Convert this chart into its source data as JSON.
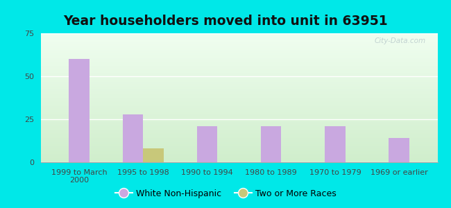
{
  "title": "Year householders moved into unit in 63951",
  "categories": [
    "1999 to March\n2000",
    "1995 to 1998",
    "1990 to 1994",
    "1980 to 1989",
    "1970 to 1979",
    "1969 or earlier"
  ],
  "white_non_hispanic": [
    60,
    28,
    21,
    21,
    21,
    14
  ],
  "two_or_more_races": [
    0,
    8,
    0,
    0,
    0,
    0
  ],
  "bar_color_white": "#c9a8e0",
  "bar_color_two": "#c8c87a",
  "background_outer": "#00e8e8",
  "background_inner": "#e8f5e0",
  "ylim": [
    0,
    75
  ],
  "yticks": [
    0,
    25,
    50,
    75
  ],
  "bar_width": 0.32,
  "legend_label_white": "White Non-Hispanic",
  "legend_label_two": "Two or More Races",
  "title_fontsize": 13.5,
  "tick_fontsize": 8,
  "legend_fontsize": 9,
  "watermark": "City-Data.com"
}
